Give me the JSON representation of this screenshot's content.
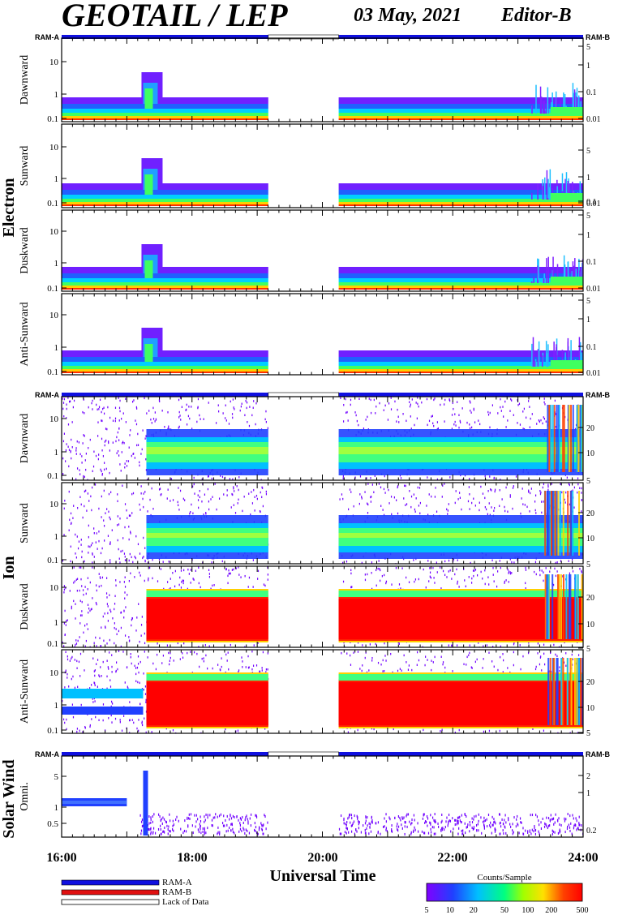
{
  "header": {
    "instrument": "GEOTAIL / LEP",
    "date": "03 May, 2021",
    "editor": "Editor-B"
  },
  "ram_labels": {
    "left": "RAM-A",
    "right": "RAM-B"
  },
  "group_labels": [
    "Electron",
    "Ion",
    "Solar Wind"
  ],
  "panels": [
    {
      "group": "electron",
      "label": "Dawnward",
      "left_ticks": [
        "10",
        "1",
        "0.1"
      ],
      "right_ticks": [
        "5",
        "1",
        "0.1",
        "0.01"
      ]
    },
    {
      "group": "electron",
      "label": "Sunward",
      "left_ticks": [
        "10",
        "1",
        "0.1"
      ],
      "right_ticks": [
        "5",
        "1",
        "0.1",
        "0.01"
      ]
    },
    {
      "group": "electron",
      "label": "Duskward",
      "left_ticks": [
        "10",
        "1",
        "0.1"
      ],
      "right_ticks": [
        "5",
        "1",
        "0.1",
        "0.01"
      ]
    },
    {
      "group": "electron",
      "label": "Anti-Sunward",
      "left_ticks": [
        "10",
        "1",
        "0.1"
      ],
      "right_ticks": [
        "5",
        "1",
        "0.1",
        "0.01"
      ]
    },
    {
      "group": "ion",
      "label": "Dawnward",
      "left_ticks": [
        "10",
        "1",
        "0.1"
      ],
      "right_ticks": [
        "20",
        "10",
        "5"
      ]
    },
    {
      "group": "ion",
      "label": "Sunward",
      "left_ticks": [
        "10",
        "1",
        "0.1"
      ],
      "right_ticks": [
        "20",
        "10",
        "5"
      ]
    },
    {
      "group": "ion",
      "label": "Duskward",
      "left_ticks": [
        "10",
        "1",
        "0.1"
      ],
      "right_ticks": [
        "20",
        "10",
        "5"
      ]
    },
    {
      "group": "ion",
      "label": "Anti-Sunward",
      "left_ticks": [
        "10",
        "1",
        "0.1"
      ],
      "right_ticks": [
        "20",
        "10",
        "5"
      ]
    },
    {
      "group": "solar-wind",
      "label": "Omni.",
      "left_ticks": [
        "5",
        "1",
        "0.5"
      ],
      "right_ticks": [
        "2",
        "1",
        "0.2"
      ]
    }
  ],
  "x_axis": {
    "title": "Universal Time",
    "ticks": [
      "16:00",
      "18:00",
      "20:00",
      "22:00",
      "24:00"
    ],
    "range_hours": [
      16,
      24
    ]
  },
  "legend": {
    "items": [
      {
        "label": "RAM-A",
        "color": "#1010e0"
      },
      {
        "label": "RAM-B",
        "color": "#e01010"
      },
      {
        "label": "Lack of Data",
        "color": "#ffffff"
      }
    ]
  },
  "colorbar": {
    "title": "Counts/Sample",
    "ticks": [
      "5",
      "10",
      "20",
      "50",
      "100",
      "200",
      "500"
    ],
    "colors": [
      "#8000ff",
      "#2040ff",
      "#00c0ff",
      "#00ff80",
      "#a0ff00",
      "#ffe000",
      "#ff4000",
      "#ff0000"
    ]
  },
  "chart_data": {
    "type": "heatmap",
    "title": "GEOTAIL / LEP",
    "xlabel": "Universal Time",
    "x_range": [
      16,
      24
    ],
    "data_gap_hours": [
      19.17,
      20.25
    ],
    "ram_bar_segments": [
      {
        "from": 16.0,
        "to": 19.17,
        "state": "RAM-A"
      },
      {
        "from": 19.17,
        "to": 20.25,
        "state": "Lack of Data"
      },
      {
        "from": 20.25,
        "to": 24.0,
        "state": "RAM-A"
      }
    ],
    "color_scale": {
      "label": "Counts/Sample",
      "min": 5,
      "max": 500,
      "scale": "log"
    }
  }
}
